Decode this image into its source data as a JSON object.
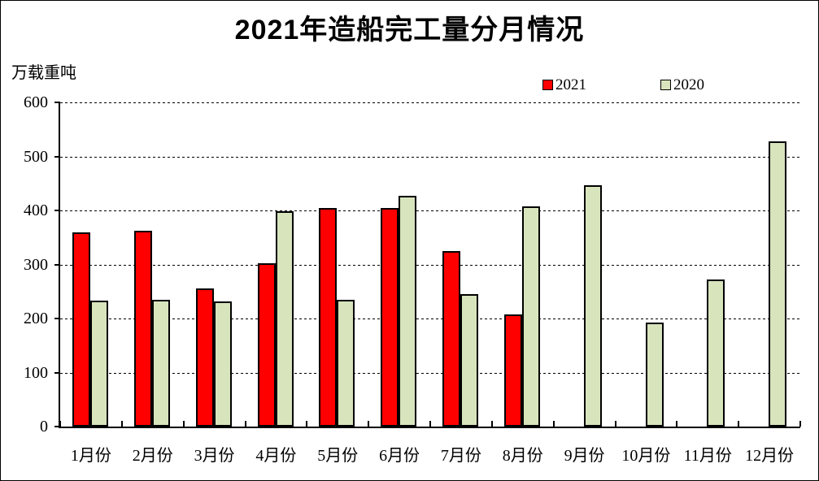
{
  "title": "2021年造船完工量分月情况",
  "y_axis": {
    "unit_label": "万载重吨",
    "ticks": [
      0,
      100,
      200,
      300,
      400,
      500,
      600
    ]
  },
  "legend": {
    "items": [
      {
        "label": "2021",
        "color": "#FF0000"
      },
      {
        "label": "2020",
        "color": "#D8E4BC"
      }
    ]
  },
  "chart_data": {
    "type": "bar",
    "title": "2021年造船完工量分月情况",
    "ylabel": "万载重吨",
    "categories": [
      "1月份",
      "2月份",
      "3月份",
      "4月份",
      "5月份",
      "6月份",
      "7月份",
      "8月份",
      "9月份",
      "10月份",
      "11月份",
      "12月份"
    ],
    "series": [
      {
        "name": "2021",
        "color": "#FF0000",
        "values": [
          360,
          362,
          256,
          302,
          405,
          405,
          325,
          208,
          null,
          null,
          null,
          null
        ]
      },
      {
        "name": "2020",
        "color": "#D8E4BC",
        "values": [
          233,
          234,
          232,
          398,
          234,
          427,
          245,
          407,
          446,
          193,
          272,
          528
        ]
      }
    ],
    "ylim": [
      0,
      600
    ],
    "ytick_interval": 100,
    "grid": "horizontal-dashed",
    "legend_position": "top-right"
  }
}
